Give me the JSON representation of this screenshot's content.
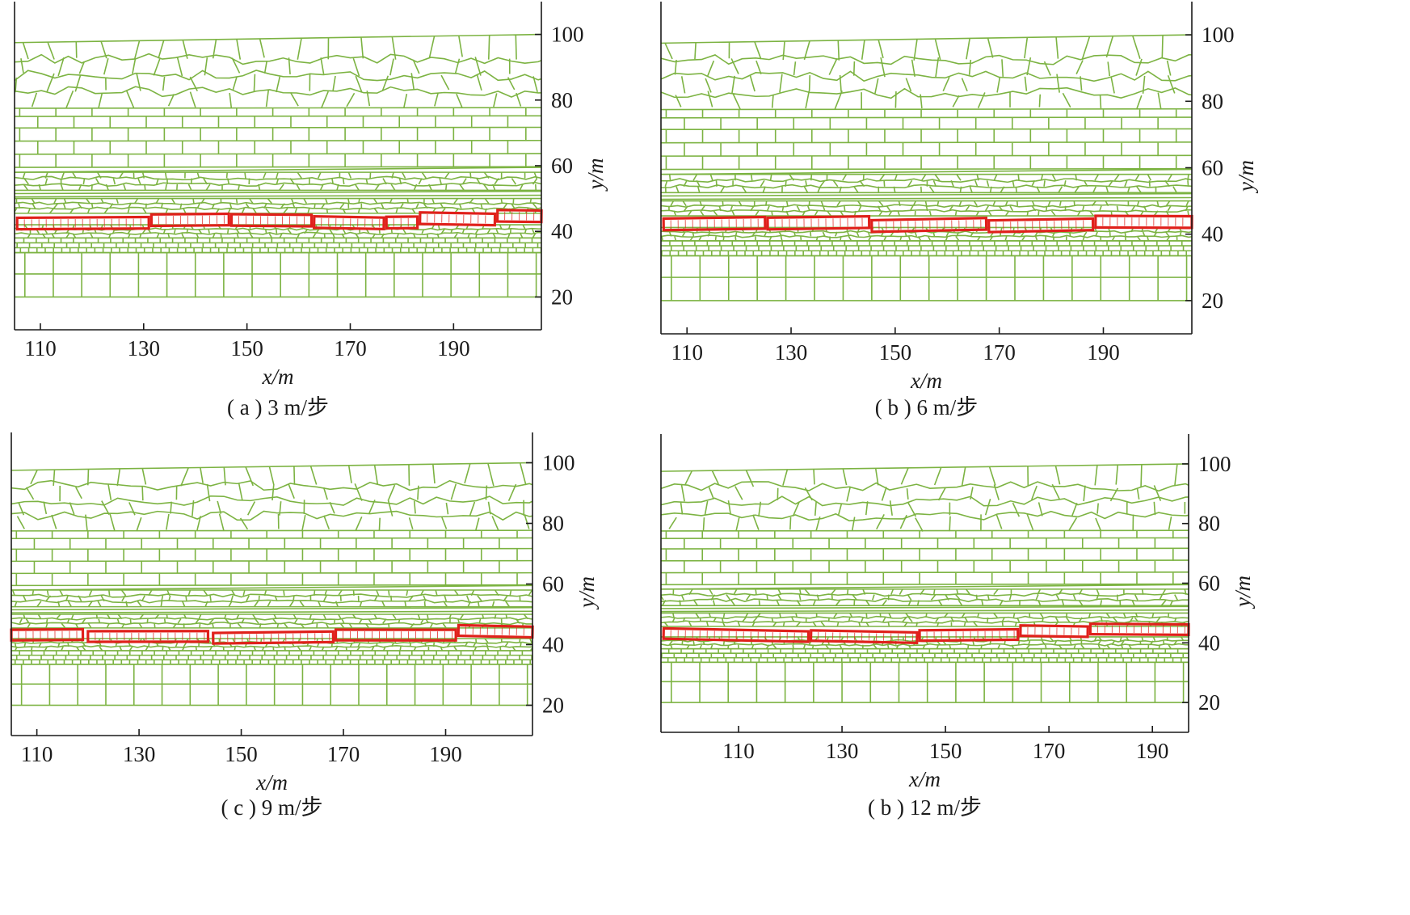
{
  "colors": {
    "mesh": "#7cb342",
    "key_block": "#e0201b",
    "axis": "#1a1a1a",
    "background": "#ffffff"
  },
  "panels": [
    {
      "id": "a",
      "caption": "( a ) 3 m/步",
      "xlabel": "x/m",
      "ylabel": "y/m",
      "xlim": [
        105,
        207
      ],
      "ylim": [
        10,
        110
      ],
      "x_ticks": [
        "110",
        "130",
        "150",
        "170",
        "190"
      ],
      "y_ticks": [
        "20",
        "40",
        "60",
        "80",
        "100"
      ],
      "x_tick_values": [
        110,
        130,
        150,
        170,
        190
      ],
      "y_tick_values": [
        20,
        40,
        60,
        80,
        100
      ],
      "key_blocks": [
        [
          105.5,
          131
        ],
        [
          131.5,
          146.5
        ],
        [
          147,
          162.5
        ],
        [
          163,
          176.5
        ],
        [
          177,
          183
        ],
        [
          183.5,
          198
        ],
        [
          198.5,
          207
        ]
      ]
    },
    {
      "id": "b",
      "caption": "( b ) 6 m/步",
      "xlabel": "x/m",
      "ylabel": "y/m",
      "xlim": [
        105,
        207
      ],
      "ylim": [
        10,
        110
      ],
      "x_ticks": [
        "110",
        "130",
        "150",
        "170",
        "190"
      ],
      "y_ticks": [
        "20",
        "40",
        "60",
        "80",
        "100"
      ],
      "x_tick_values": [
        110,
        130,
        150,
        170,
        190
      ],
      "y_tick_values": [
        20,
        40,
        60,
        80,
        100
      ],
      "key_blocks": [
        [
          105.5,
          125
        ],
        [
          125.5,
          145
        ],
        [
          145.5,
          167.5
        ],
        [
          168,
          188
        ],
        [
          188.5,
          207
        ]
      ]
    },
    {
      "id": "c",
      "caption": "( c ) 9 m/步",
      "xlabel": "x/m",
      "ylabel": "y/m",
      "xlim": [
        105,
        207
      ],
      "ylim": [
        10,
        110
      ],
      "x_ticks": [
        "110",
        "130",
        "150",
        "170",
        "190"
      ],
      "y_ticks": [
        "20",
        "40",
        "60",
        "80",
        "100"
      ],
      "x_tick_values": [
        110,
        130,
        150,
        170,
        190
      ],
      "y_tick_values": [
        20,
        40,
        60,
        80,
        100
      ],
      "key_blocks": [
        [
          105,
          119
        ],
        [
          120,
          143.5
        ],
        [
          144.5,
          168
        ],
        [
          168.5,
          192
        ],
        [
          192.5,
          207
        ]
      ]
    },
    {
      "id": "d",
      "caption": "( b ) 12 m/步",
      "xlabel": "x/m",
      "ylabel": "y/m",
      "xlim": [
        95,
        197
      ],
      "ylim": [
        10,
        110
      ],
      "x_ticks": [
        "110",
        "130",
        "150",
        "170",
        "190"
      ],
      "y_ticks": [
        "20",
        "40",
        "60",
        "80",
        "100"
      ],
      "x_tick_values": [
        110,
        130,
        150,
        170,
        190
      ],
      "y_tick_values": [
        20,
        40,
        60,
        80,
        100
      ],
      "key_blocks": [
        [
          95.5,
          123.5
        ],
        [
          124,
          144.5
        ],
        [
          145,
          164
        ],
        [
          164.5,
          177.5
        ],
        [
          178,
          197
        ]
      ]
    }
  ]
}
